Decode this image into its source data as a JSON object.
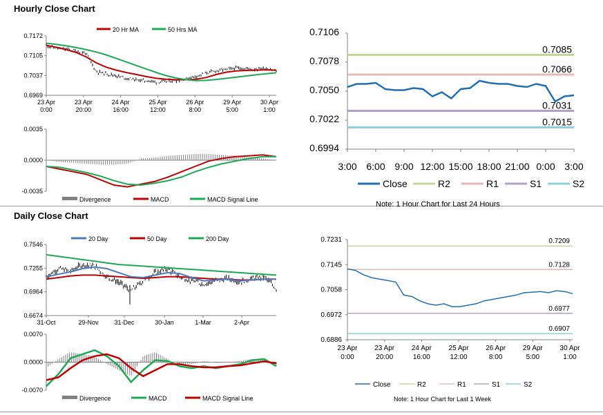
{
  "sections": {
    "hourly_title": "Hourly Close Chart",
    "daily_title": "Daily Close Chart"
  },
  "chart_data": [
    {
      "id": "hourly-price",
      "type": "line",
      "x_labels": [
        [
          "23 Apr",
          "0:00"
        ],
        [
          "23 Apr",
          "20:00"
        ],
        [
          "24 Apr",
          "16:00"
        ],
        [
          "25 Apr",
          "12:00"
        ],
        [
          "26 Apr",
          "8:00"
        ],
        [
          "29 Apr",
          "5:00"
        ],
        [
          "30 Apr",
          "1:00"
        ]
      ],
      "y_ticks": [
        "0.7172",
        "0.7105",
        "0.7037",
        "0.6969"
      ],
      "ylim": [
        0.6969,
        0.7172
      ],
      "legend": [
        "20 Hr MA",
        "50 Hrs MA"
      ],
      "colors": {
        "price": "#000000",
        "ma20": "#c00000",
        "ma50": "#1aaa55"
      },
      "series": [
        {
          "name": "20 Hr MA",
          "values": [
            0.714,
            0.7133,
            0.7125,
            0.7115,
            0.71,
            0.708,
            0.7065,
            0.7055,
            0.7047,
            0.704,
            0.7033,
            0.7027,
            0.7024,
            0.7022,
            0.7022,
            0.7024,
            0.703,
            0.704,
            0.7048,
            0.7052,
            0.7054,
            0.7055,
            0.7056,
            0.7055
          ]
        },
        {
          "name": "50 Hrs MA",
          "values": [
            0.7147,
            0.7143,
            0.7138,
            0.7132,
            0.7125,
            0.7117,
            0.7107,
            0.7095,
            0.7083,
            0.7071,
            0.7059,
            0.7047,
            0.7036,
            0.7028,
            0.7022,
            0.7019,
            0.702,
            0.7023,
            0.7027,
            0.7031,
            0.7035,
            0.7039,
            0.7043,
            0.7046
          ]
        },
        {
          "name": "Close",
          "values": [
            0.714,
            0.713,
            0.7126,
            0.712,
            0.7112,
            0.705,
            0.7043,
            0.7036,
            0.7028,
            0.7022,
            0.7019,
            0.7015,
            0.7016,
            0.702,
            0.7026,
            0.7035,
            0.7045,
            0.7053,
            0.7058,
            0.7062,
            0.706,
            0.7059,
            0.7062,
            0.7052
          ]
        }
      ]
    },
    {
      "id": "hourly-macd",
      "type": "line",
      "y_ticks": [
        "0.0035",
        "0.0000",
        "-0.0035"
      ],
      "ylim": [
        -0.0035,
        0.0035
      ],
      "legend": [
        "Divergence",
        "MACD",
        "MACD Signal Line"
      ],
      "colors": {
        "divergence": "#808080",
        "macd": "#c00000",
        "signal": "#1aaa55"
      },
      "series": [
        {
          "name": "MACD",
          "values": [
            -0.0007,
            -0.001,
            -0.0013,
            -0.0016,
            -0.0022,
            -0.0028,
            -0.003,
            -0.0027,
            -0.0024,
            -0.0019,
            -0.0013,
            -0.0007,
            -0.0001,
            0.0002,
            0.0004,
            0.0005,
            0.0006,
            0.0004
          ]
        },
        {
          "name": "MACD Signal Line",
          "values": [
            -0.0007,
            -0.0008,
            -0.0011,
            -0.0014,
            -0.0018,
            -0.0023,
            -0.0027,
            -0.0028,
            -0.0026,
            -0.0023,
            -0.0019,
            -0.0013,
            -0.0008,
            -0.0004,
            -0.0001,
            0.0002,
            0.0004,
            0.0004
          ]
        },
        {
          "name": "Divergence",
          "values": [
            0.0,
            -0.0002,
            -0.0003,
            -0.0004,
            -0.0005,
            -0.0005,
            -0.0004,
            0.0002,
            0.0003,
            0.0005,
            0.0006,
            0.0007,
            0.0007,
            0.0006,
            0.0005,
            0.0003,
            0.0002,
            0.0
          ]
        }
      ]
    },
    {
      "id": "hourly-24h",
      "type": "line",
      "x_labels": [
        "3:00",
        "6:00",
        "9:00",
        "12:00",
        "15:00",
        "18:00",
        "21:00",
        "0:00",
        "3:00"
      ],
      "y_ticks": [
        "0.7106",
        "0.7078",
        "0.7050",
        "0.7022",
        "0.6994"
      ],
      "ylim": [
        0.6994,
        0.7106
      ],
      "levels": [
        {
          "name": "R2",
          "value": 0.7085,
          "label": "0.7085",
          "color": "#c4d79b"
        },
        {
          "name": "R1",
          "value": 0.7066,
          "label": "0.7066",
          "color": "#e6b8b7"
        },
        {
          "name": "S1",
          "value": 0.7031,
          "label": "0.7031",
          "color": "#b1a0c7"
        },
        {
          "name": "S2",
          "value": 0.7015,
          "label": "0.7015",
          "color": "#92cddc"
        }
      ],
      "legend": [
        "Close",
        "R2",
        "R1",
        "S1",
        "S2"
      ],
      "colors": {
        "close": "#1f6fb2"
      },
      "series": [
        {
          "name": "Close",
          "values": [
            0.7054,
            0.7057,
            0.7057,
            0.7058,
            0.7052,
            0.7051,
            0.7051,
            0.7053,
            0.7052,
            0.7045,
            0.7049,
            0.7043,
            0.7052,
            0.7053,
            0.706,
            0.7058,
            0.7057,
            0.7057,
            0.7055,
            0.7054,
            0.7057,
            0.7055,
            0.704,
            0.7045,
            0.7046
          ]
        }
      ],
      "note": "Note: 1 Hour Chart for Last 24 Hours"
    },
    {
      "id": "daily-price",
      "type": "line",
      "x_labels": [
        "31-Oct",
        "29-Nov",
        "31-Dec",
        "30-Jan",
        "1-Mar",
        "2-Apr"
      ],
      "y_ticks": [
        "0.7546",
        "0.7255",
        "0.6964",
        "0.6674"
      ],
      "ylim": [
        0.6674,
        0.7546
      ],
      "legend": [
        "20 Day",
        "50 Day",
        "200 Day"
      ],
      "colors": {
        "price": "#000000",
        "d20": "#4a78c2",
        "d50": "#c00000",
        "d200": "#1aaa55"
      },
      "series": [
        {
          "name": "20 Day",
          "values": [
            0.715,
            0.718,
            0.721,
            0.725,
            0.727,
            0.725,
            0.72,
            0.715,
            0.714,
            0.717,
            0.72,
            0.719,
            0.714,
            0.71,
            0.711,
            0.712,
            0.71,
            0.711,
            0.712,
            0.712
          ]
        },
        {
          "name": "50 Day",
          "values": [
            0.712,
            0.714,
            0.716,
            0.717,
            0.717,
            0.716,
            0.715,
            0.714,
            0.713,
            0.714,
            0.715,
            0.715,
            0.714,
            0.713,
            0.712,
            0.712,
            0.711,
            0.711,
            0.712,
            0.712
          ]
        },
        {
          "name": "200 Day",
          "values": [
            0.742,
            0.74,
            0.738,
            0.736,
            0.734,
            0.732,
            0.73,
            0.729,
            0.728,
            0.727,
            0.726,
            0.725,
            0.724,
            0.723,
            0.722,
            0.721,
            0.72,
            0.719,
            0.718,
            0.717
          ]
        },
        {
          "name": "Close",
          "values": [
            0.715,
            0.725,
            0.722,
            0.73,
            0.728,
            0.715,
            0.708,
            0.698,
            0.71,
            0.72,
            0.725,
            0.715,
            0.71,
            0.706,
            0.71,
            0.713,
            0.709,
            0.713,
            0.715,
            0.7
          ]
        }
      ]
    },
    {
      "id": "daily-macd",
      "type": "line",
      "y_ticks": [
        "0.0070",
        "0.0000",
        "-0.0070"
      ],
      "ylim": [
        -0.007,
        0.007
      ],
      "legend": [
        "Divergence",
        "MACD",
        "MACD Signal Line"
      ],
      "colors": {
        "divergence": "#808080",
        "macd": "#1aaa55",
        "signal": "#c00000"
      },
      "series": [
        {
          "name": "MACD",
          "values": [
            -0.006,
            -0.003,
            0.001,
            0.002,
            0.003,
            0.0015,
            -0.001,
            -0.005,
            -0.002,
            0.0005,
            0.0003,
            -0.001,
            -0.0015,
            -0.001,
            -0.0015,
            -0.001,
            -0.0005,
            0.0005,
            0.0008,
            -0.001
          ]
        },
        {
          "name": "MACD Signal Line",
          "values": [
            -0.0045,
            -0.0038,
            -0.0015,
            0.0005,
            0.0015,
            0.002,
            0.001,
            -0.0015,
            -0.0035,
            -0.002,
            -0.0005,
            -0.0005,
            -0.001,
            -0.0013,
            -0.0013,
            -0.001,
            -0.0008,
            -0.0003,
            0.0002,
            -0.0003
          ]
        },
        {
          "name": "Divergence",
          "values": [
            -0.0015,
            0.0008,
            0.0025,
            0.002,
            0.0015,
            -0.0005,
            -0.002,
            -0.0035,
            0.0015,
            0.0025,
            0.0008,
            -0.0005,
            -0.0005,
            0.0003,
            -0.0002,
            0.0,
            0.0003,
            0.0008,
            0.0006,
            -0.0007
          ]
        }
      ]
    },
    {
      "id": "hourly-week",
      "type": "line",
      "x_labels": [
        [
          "23 Apr",
          "0:00"
        ],
        [
          "23 Apr",
          "20:00"
        ],
        [
          "24 Apr",
          "16:00"
        ],
        [
          "25 Apr",
          "12:00"
        ],
        [
          "26 Apr",
          "8:00"
        ],
        [
          "29 Apr",
          "5:00"
        ],
        [
          "30 Apr",
          "1:00"
        ]
      ],
      "y_ticks": [
        "0.7231",
        "0.7145",
        "0.7058",
        "0.6972",
        "0.6886"
      ],
      "ylim": [
        0.6886,
        0.7231
      ],
      "levels": [
        {
          "name": "R2",
          "value": 0.7209,
          "label": "0.7209",
          "color": "#c4d79b"
        },
        {
          "name": "R1",
          "value": 0.7128,
          "label": "0.7128",
          "color": "#e6b8b7"
        },
        {
          "name": "S1",
          "value": 0.6977,
          "label": "0.6977",
          "color": "#b1a0c7"
        },
        {
          "name": "S2",
          "value": 0.6907,
          "label": "0.6907",
          "color": "#92cddc"
        }
      ],
      "legend": [
        "Close",
        "R2",
        "R1",
        "S1",
        "S2"
      ],
      "colors": {
        "close": "#1f6fb2"
      },
      "series": [
        {
          "name": "Close",
          "values": [
            0.713,
            0.7125,
            0.711,
            0.71,
            0.7095,
            0.709,
            0.7085,
            0.704,
            0.7035,
            0.702,
            0.701,
            0.7005,
            0.701,
            0.7,
            0.7,
            0.7005,
            0.701,
            0.702,
            0.7025,
            0.703,
            0.7035,
            0.704,
            0.7048,
            0.705,
            0.7052,
            0.7048,
            0.7055,
            0.7052,
            0.7045
          ]
        }
      ],
      "note": "Note: 1 Hour Chart for Last 1 Week"
    }
  ]
}
